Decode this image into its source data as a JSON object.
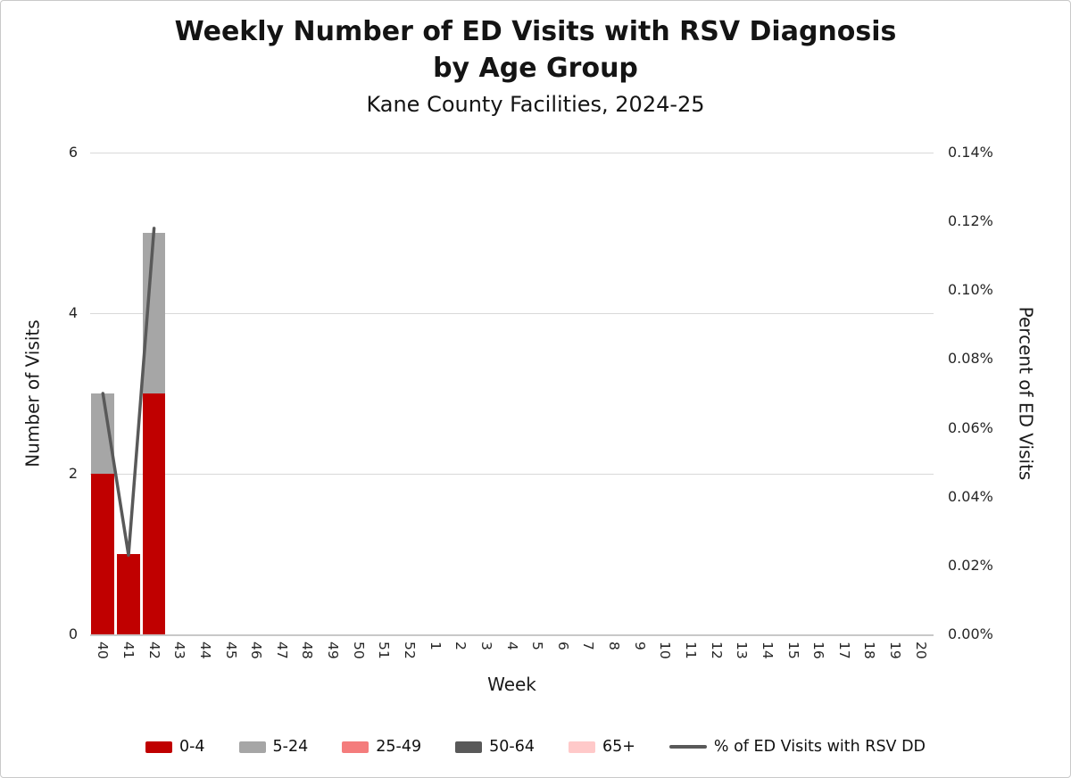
{
  "chart_data": {
    "type": "bar",
    "title_line1": "Weekly Number of ED Visits with RSV Diagnosis",
    "title_line2": "by Age Group",
    "subtitle": "Kane County Facilities, 2024-25",
    "xlabel": "Week",
    "ylabel_left": "Number of Visits",
    "ylabel_right": "Percent of ED Visits",
    "categories": [
      "40",
      "41",
      "42",
      "43",
      "44",
      "45",
      "46",
      "47",
      "48",
      "49",
      "50",
      "51",
      "52",
      "1",
      "2",
      "3",
      "4",
      "5",
      "6",
      "7",
      "8",
      "9",
      "10",
      "11",
      "12",
      "13",
      "14",
      "15",
      "16",
      "17",
      "18",
      "19",
      "20"
    ],
    "ylim_left": [
      0,
      6
    ],
    "yticks_left": [
      0,
      2,
      4,
      6
    ],
    "ylim_right_percent": [
      0,
      0.14
    ],
    "yticks_right_labels": [
      "0.00%",
      "0.02%",
      "0.04%",
      "0.06%",
      "0.08%",
      "0.10%",
      "0.12%",
      "0.14%"
    ],
    "grid": "horizontal",
    "legend_position": "bottom",
    "bar_series": [
      {
        "name": "0-4",
        "color": "#c00000",
        "values": [
          2,
          1,
          3,
          0,
          0,
          0,
          0,
          0,
          0,
          0,
          0,
          0,
          0,
          0,
          0,
          0,
          0,
          0,
          0,
          0,
          0,
          0,
          0,
          0,
          0,
          0,
          0,
          0,
          0,
          0,
          0,
          0,
          0
        ]
      },
      {
        "name": "5-24",
        "color": "#a6a6a6",
        "values": [
          1,
          0,
          2,
          0,
          0,
          0,
          0,
          0,
          0,
          0,
          0,
          0,
          0,
          0,
          0,
          0,
          0,
          0,
          0,
          0,
          0,
          0,
          0,
          0,
          0,
          0,
          0,
          0,
          0,
          0,
          0,
          0,
          0
        ]
      },
      {
        "name": "25-49",
        "color": "#f47c7c",
        "values": [
          0,
          0,
          0,
          0,
          0,
          0,
          0,
          0,
          0,
          0,
          0,
          0,
          0,
          0,
          0,
          0,
          0,
          0,
          0,
          0,
          0,
          0,
          0,
          0,
          0,
          0,
          0,
          0,
          0,
          0,
          0,
          0,
          0
        ]
      },
      {
        "name": "50-64",
        "color": "#595959",
        "values": [
          0,
          0,
          0,
          0,
          0,
          0,
          0,
          0,
          0,
          0,
          0,
          0,
          0,
          0,
          0,
          0,
          0,
          0,
          0,
          0,
          0,
          0,
          0,
          0,
          0,
          0,
          0,
          0,
          0,
          0,
          0,
          0,
          0
        ]
      },
      {
        "name": "65+",
        "color": "#ffc9c9",
        "values": [
          0,
          0,
          0,
          0,
          0,
          0,
          0,
          0,
          0,
          0,
          0,
          0,
          0,
          0,
          0,
          0,
          0,
          0,
          0,
          0,
          0,
          0,
          0,
          0,
          0,
          0,
          0,
          0,
          0,
          0,
          0,
          0,
          0
        ]
      }
    ],
    "line_series": {
      "name": "% of ED Visits with RSV DD",
      "color": "#595959",
      "values": [
        0.07,
        0.023,
        0.118,
        null,
        null,
        null,
        null,
        null,
        null,
        null,
        null,
        null,
        null,
        null,
        null,
        null,
        null,
        null,
        null,
        null,
        null,
        null,
        null,
        null,
        null,
        null,
        null,
        null,
        null,
        null,
        null,
        null,
        null
      ]
    }
  }
}
